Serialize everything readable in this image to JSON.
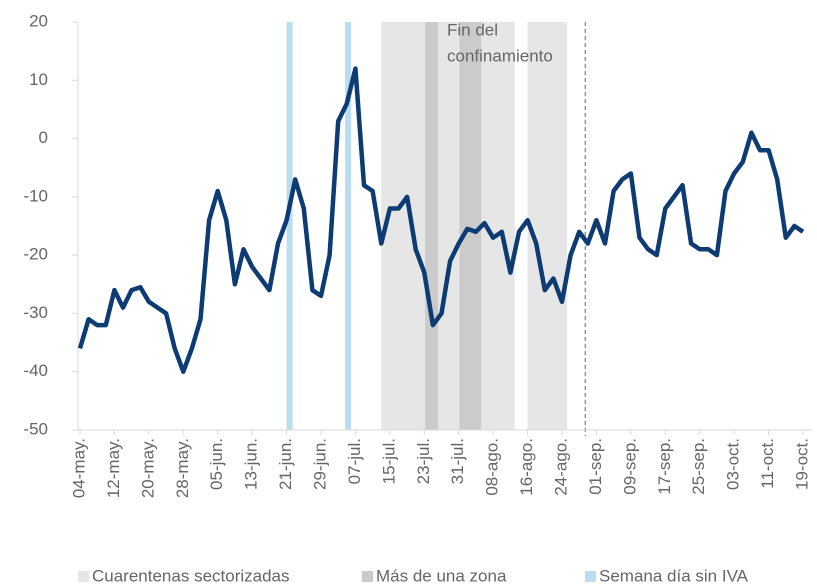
{
  "chart_data": {
    "type": "line",
    "categories": [
      "04-may.",
      null,
      null,
      null,
      "12-may.",
      null,
      null,
      null,
      "20-may.",
      null,
      null,
      null,
      "28-may.",
      null,
      null,
      null,
      "05-jun.",
      null,
      null,
      null,
      "13-jun.",
      null,
      null,
      null,
      "21-jun.",
      null,
      null,
      null,
      "29-jun.",
      null,
      null,
      null,
      "07-jul.",
      null,
      null,
      null,
      "15-jul.",
      null,
      null,
      null,
      "23-jul.",
      null,
      null,
      null,
      "31-jul.",
      null,
      null,
      null,
      "08-ago.",
      null,
      null,
      null,
      "16-ago.",
      null,
      null,
      null,
      "24-ago.",
      null,
      null,
      null,
      "01-sep.",
      null,
      null,
      null,
      "09-sep.",
      null,
      null,
      null,
      "17-sep.",
      null,
      null,
      null,
      "25-sep.",
      null,
      null,
      null,
      "03-oct.",
      null,
      null,
      null,
      "11-oct.",
      null,
      null,
      null,
      "19-oct."
    ],
    "series": [
      {
        "color": "#0d3b73",
        "values": [
          -36,
          -31,
          -32,
          -32,
          -26,
          -29,
          -26,
          -25.5,
          -28,
          -29,
          -30,
          -36,
          -40,
          -36,
          -31,
          -14,
          -9,
          -14,
          -25,
          -19,
          -22,
          -24,
          -26,
          -18,
          -14,
          -7,
          -12,
          -26,
          -27,
          -20,
          3,
          6,
          12,
          -8,
          -9,
          -18,
          -12,
          -12,
          -10,
          -19,
          -23,
          -32,
          -30,
          -21,
          -18,
          -15.5,
          -16,
          -14.5,
          -17,
          -16,
          -23,
          -16,
          -14,
          -18,
          -26,
          -24,
          -28,
          -20,
          -16,
          -18,
          -14,
          -18,
          -9,
          -7,
          -6,
          -17,
          -19,
          -20,
          -12,
          -10,
          -8,
          -18,
          -19,
          -19,
          -20,
          -9,
          -6,
          -4,
          1,
          -2,
          -2,
          -7,
          -17,
          -15,
          -16
        ]
      }
    ],
    "bands": [
      {
        "name": "Cuarentenas sectorizadas",
        "color": "#e6e6e6",
        "ranges": [
          [
            35,
            50.5
          ],
          [
            52,
            56.6
          ]
        ]
      },
      {
        "name": "Más de una zona",
        "color": "#cbcbcb",
        "ranges": [
          [
            40.1,
            41.6
          ],
          [
            44.1,
            46.6
          ]
        ]
      },
      {
        "name": "Semana día sin IVA",
        "color": "#bcdcf0",
        "ranges": [
          [
            24,
            24.7
          ],
          [
            30.8,
            31.5
          ]
        ]
      }
    ],
    "vline": {
      "x": 58.7,
      "label": [
        "Fin del",
        "confinamiento"
      ]
    },
    "ylim": [
      -50,
      20
    ],
    "yticks": [
      -50,
      -40,
      -30,
      -20,
      -10,
      0,
      10,
      20
    ]
  }
}
